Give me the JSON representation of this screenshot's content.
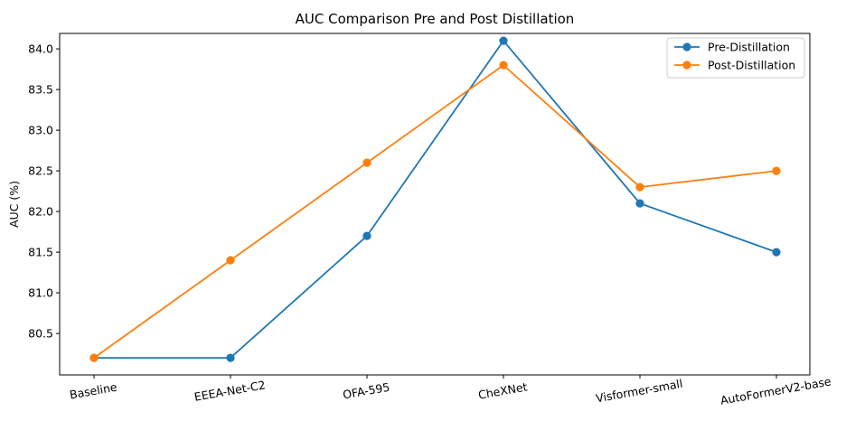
{
  "chart_data": {
    "type": "line",
    "title": "AUC Comparison Pre and Post Distillation",
    "xlabel": "",
    "ylabel": "AUC (%)",
    "categories": [
      "Baseline",
      "EEEA-Net-C2",
      "OFA-595",
      "CheXNet",
      "Visformer-small",
      "AutoFormerV2-base"
    ],
    "yticks": [
      "80.5",
      "81.0",
      "81.5",
      "82.0",
      "82.5",
      "83.0",
      "83.5",
      "84.0"
    ],
    "ylim": [
      79.99,
      84.19
    ],
    "grid": false,
    "legend_position": "top-right",
    "series": [
      {
        "name": "Pre-Distillation",
        "color": "#1f77b4",
        "values": [
          80.2,
          80.2,
          81.7,
          84.1,
          82.1,
          81.5
        ]
      },
      {
        "name": "Post-Distillation",
        "color": "#ff7f0e",
        "values": [
          80.2,
          81.4,
          82.6,
          83.8,
          82.3,
          82.5
        ]
      }
    ]
  }
}
